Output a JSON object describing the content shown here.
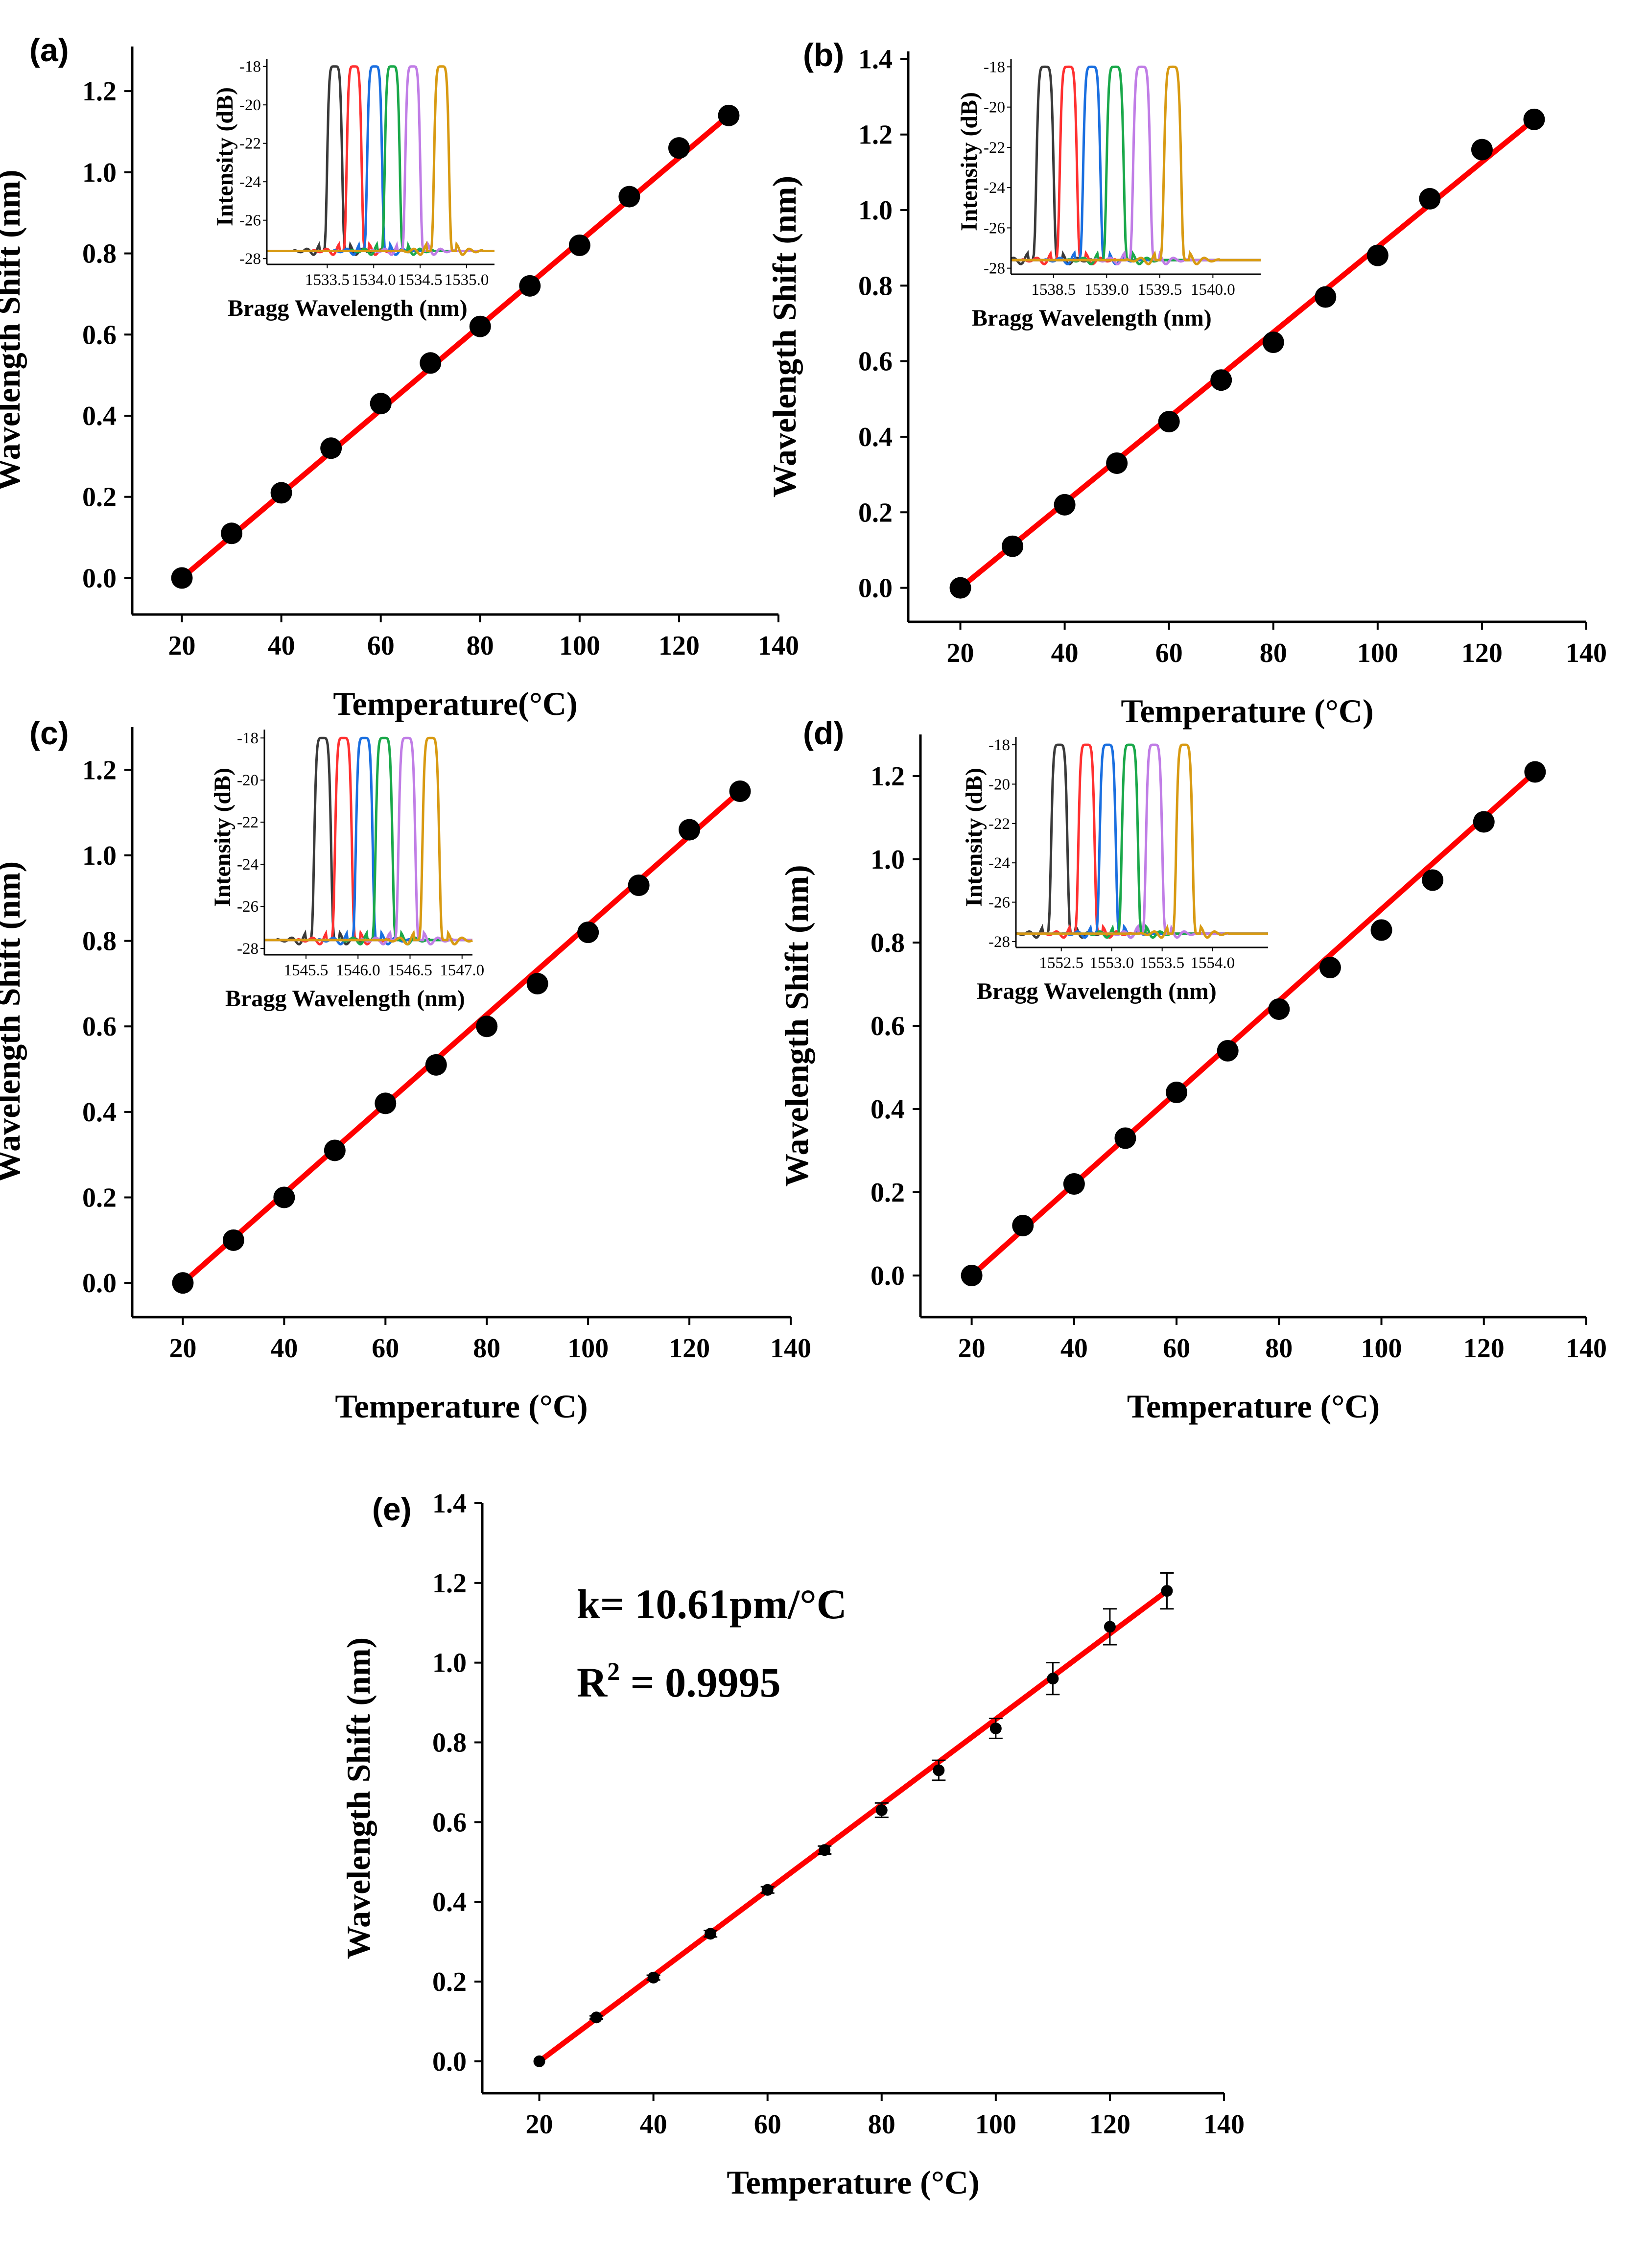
{
  "figure": {
    "background": "#ffffff",
    "fit_color": "#ff0000",
    "point_color": "#000000"
  },
  "inset_colors": [
    "#3a3a3a",
    "#ff3030",
    "#1a6fe0",
    "#1aa84a",
    "#c07de6",
    "#d89a12"
  ],
  "chart_data": [
    {
      "panel": "(a)",
      "type": "scatter",
      "xlabel": "Temperature(°C)",
      "ylabel": "Wavelength Shift (nm)",
      "xlim": [
        10,
        140
      ],
      "ylim": [
        -0.09,
        1.31
      ],
      "xticks": [
        20,
        40,
        60,
        80,
        100,
        120,
        140
      ],
      "yticks": [
        0.0,
        0.2,
        0.4,
        0.6,
        0.8,
        1.0,
        1.2
      ],
      "xtick_labels": [
        "20",
        "40",
        "60",
        "80",
        "100",
        "120",
        "140"
      ],
      "ytick_labels": [
        "0.0",
        "0.2",
        "0.4",
        "0.6",
        "0.8",
        "1.0",
        "1.2"
      ],
      "x": [
        20,
        30,
        40,
        50,
        60,
        70,
        80,
        90,
        100,
        110,
        120,
        130
      ],
      "y": [
        0.0,
        0.11,
        0.21,
        0.32,
        0.43,
        0.53,
        0.62,
        0.72,
        0.82,
        0.94,
        1.06,
        1.14
      ],
      "fit": {
        "x": [
          20,
          130
        ],
        "y": [
          0.0,
          1.14
        ]
      },
      "inset": {
        "xlabel": "Bragg Wavelength (nm)",
        "ylabel": "Intensity (dB)",
        "xlim": [
          1532.85,
          1535.3
        ],
        "ylim": [
          -28.3,
          -17.6
        ],
        "xticks": [
          1533.5,
          1534.0,
          1534.5,
          1535.0
        ],
        "xtick_labels": [
          "1533.5",
          "1534.0",
          "1534.5",
          "1535.0"
        ],
        "yticks": [
          -18,
          -20,
          -22,
          -24,
          -26,
          -28
        ],
        "ytick_labels": [
          "-18",
          "-20",
          "-22",
          "-24",
          "-26",
          "-28"
        ],
        "peaks": [
          1533.58,
          1533.79,
          1534.01,
          1534.2,
          1534.42,
          1534.73
        ]
      }
    },
    {
      "panel": "(b)",
      "type": "scatter",
      "xlabel": "Temperature (°C)",
      "ylabel": "Wavelength Shift (nm)",
      "xlim": [
        10,
        140
      ],
      "ylim": [
        -0.09,
        1.42
      ],
      "xticks": [
        20,
        40,
        60,
        80,
        100,
        120,
        140
      ],
      "yticks": [
        0.0,
        0.2,
        0.4,
        0.6,
        0.8,
        1.0,
        1.2,
        1.4
      ],
      "xtick_labels": [
        "20",
        "40",
        "60",
        "80",
        "100",
        "120",
        "140"
      ],
      "ytick_labels": [
        "0.0",
        "0.2",
        "0.4",
        "0.6",
        "0.8",
        "1.0",
        "1.2",
        "1.4"
      ],
      "x": [
        20,
        30,
        40,
        50,
        60,
        70,
        80,
        90,
        100,
        110,
        120,
        130
      ],
      "y": [
        0.0,
        0.11,
        0.22,
        0.33,
        0.44,
        0.55,
        0.65,
        0.77,
        0.88,
        1.03,
        1.16,
        1.24
      ],
      "fit": {
        "x": [
          20,
          130
        ],
        "y": [
          0.0,
          1.24
        ]
      },
      "inset": {
        "xlabel": "Bragg Wavelength (nm)",
        "ylabel": "Intensity (dB)",
        "xlim": [
          1538.1,
          1540.45
        ],
        "ylim": [
          -28.3,
          -17.6
        ],
        "xticks": [
          1538.5,
          1539.0,
          1539.5,
          1540.0
        ],
        "xtick_labels": [
          "1538.5",
          "1539.0",
          "1539.5",
          "1540.0"
        ],
        "yticks": [
          -18,
          -20,
          -22,
          -24,
          -26,
          -28
        ],
        "ytick_labels": [
          "-18",
          "-20",
          "-22",
          "-24",
          "-26",
          "-28"
        ],
        "peaks": [
          1538.42,
          1538.64,
          1538.86,
          1539.08,
          1539.33,
          1539.62
        ]
      }
    },
    {
      "panel": "(c)",
      "type": "scatter",
      "xlabel": "Temperature (°C)",
      "ylabel": "Wavelength Shift (nm)",
      "xlim": [
        10,
        140
      ],
      "ylim": [
        -0.08,
        1.3
      ],
      "xticks": [
        20,
        40,
        60,
        80,
        100,
        120,
        140
      ],
      "yticks": [
        0.0,
        0.2,
        0.4,
        0.6,
        0.8,
        1.0,
        1.2
      ],
      "xtick_labels": [
        "20",
        "40",
        "60",
        "80",
        "100",
        "120",
        "140"
      ],
      "ytick_labels": [
        "0.0",
        "0.2",
        "0.4",
        "0.6",
        "0.8",
        "1.0",
        "1.2"
      ],
      "x": [
        20,
        30,
        40,
        50,
        60,
        70,
        80,
        90,
        100,
        110,
        120,
        130
      ],
      "y": [
        0.0,
        0.1,
        0.2,
        0.31,
        0.42,
        0.51,
        0.6,
        0.7,
        0.82,
        0.93,
        1.06,
        1.15
      ],
      "fit": {
        "x": [
          20,
          130
        ],
        "y": [
          0.0,
          1.15
        ]
      },
      "inset": {
        "xlabel": "Bragg Wavelength (nm)",
        "ylabel": "Intensity (dB)",
        "xlim": [
          1545.1,
          1547.1
        ],
        "ylim": [
          -28.3,
          -17.6
        ],
        "xticks": [
          1545.5,
          1546.0,
          1546.5,
          1547.0
        ],
        "xtick_labels": [
          "1545.5",
          "1546.0",
          "1546.5",
          "1547.0"
        ],
        "yticks": [
          -18,
          -20,
          -22,
          -24,
          -26,
          -28
        ],
        "ytick_labels": [
          "-18",
          "-20",
          "-22",
          "-24",
          "-26",
          "-28"
        ],
        "peaks": [
          1545.66,
          1545.86,
          1546.06,
          1546.25,
          1546.47,
          1546.7
        ]
      }
    },
    {
      "panel": "(d)",
      "type": "scatter",
      "xlabel": "Temperature (°C)",
      "ylabel": "Wavelength Shift (nm)",
      "xlim": [
        10,
        140
      ],
      "ylim": [
        -0.1,
        1.3
      ],
      "xticks": [
        20,
        40,
        60,
        80,
        100,
        120,
        140
      ],
      "yticks": [
        0.0,
        0.2,
        0.4,
        0.6,
        0.8,
        1.0,
        1.2
      ],
      "xtick_labels": [
        "20",
        "40",
        "60",
        "80",
        "100",
        "120",
        "140"
      ],
      "ytick_labels": [
        "0.0",
        "0.2",
        "0.4",
        "0.6",
        "0.8",
        "1.0",
        "1.2"
      ],
      "x": [
        20,
        30,
        40,
        50,
        60,
        70,
        80,
        90,
        100,
        110,
        120,
        130
      ],
      "y": [
        0.0,
        0.12,
        0.22,
        0.33,
        0.44,
        0.54,
        0.64,
        0.74,
        0.83,
        0.95,
        1.09,
        1.21
      ],
      "fit": {
        "x": [
          20,
          130
        ],
        "y": [
          0.0,
          1.21
        ]
      },
      "inset": {
        "xlabel": "Bragg Wavelength (nm)",
        "ylabel": "Intensity (dB)",
        "xlim": [
          1552.05,
          1554.55
        ],
        "ylim": [
          -28.3,
          -17.6
        ],
        "xticks": [
          1552.5,
          1553.0,
          1553.5,
          1554.0
        ],
        "xtick_labels": [
          "1552.5",
          "1553.0",
          "1553.5",
          "1554.0"
        ],
        "yticks": [
          -18,
          -20,
          -22,
          -24,
          -26,
          -28
        ],
        "ytick_labels": [
          "-18",
          "-20",
          "-22",
          "-24",
          "-26",
          "-28"
        ],
        "peaks": [
          1552.48,
          1552.75,
          1552.96,
          1553.18,
          1553.42,
          1553.72
        ]
      }
    },
    {
      "panel": "(e)",
      "type": "scatter",
      "xlabel": "Temperature (°C)",
      "ylabel": "Wavelength Shift (nm)",
      "xlim": [
        10,
        140
      ],
      "ylim": [
        -0.08,
        1.4
      ],
      "xticks": [
        20,
        40,
        60,
        80,
        100,
        120,
        140
      ],
      "yticks": [
        0.0,
        0.2,
        0.4,
        0.6,
        0.8,
        1.0,
        1.2,
        1.4
      ],
      "xtick_labels": [
        "20",
        "40",
        "60",
        "80",
        "100",
        "120",
        "140"
      ],
      "ytick_labels": [
        "0.0",
        "0.2",
        "0.4",
        "0.6",
        "0.8",
        "1.0",
        "1.2",
        "1.4"
      ],
      "x": [
        20,
        30,
        40,
        50,
        60,
        70,
        80,
        90,
        100,
        110,
        120,
        130
      ],
      "y": [
        0.0,
        0.11,
        0.21,
        0.32,
        0.43,
        0.53,
        0.63,
        0.73,
        0.835,
        0.96,
        1.09,
        1.18
      ],
      "yerr": [
        0.0,
        0.004,
        0.006,
        0.008,
        0.008,
        0.01,
        0.018,
        0.025,
        0.025,
        0.04,
        0.045,
        0.045
      ],
      "fit": {
        "x": [
          20,
          130
        ],
        "y": [
          0.0,
          1.18
        ]
      },
      "annotation": {
        "k_text": "k= 10.61pm/°C",
        "r2_prefix": "R",
        "r2_sup": "2",
        "r2_value": " = 0.9995"
      }
    }
  ]
}
